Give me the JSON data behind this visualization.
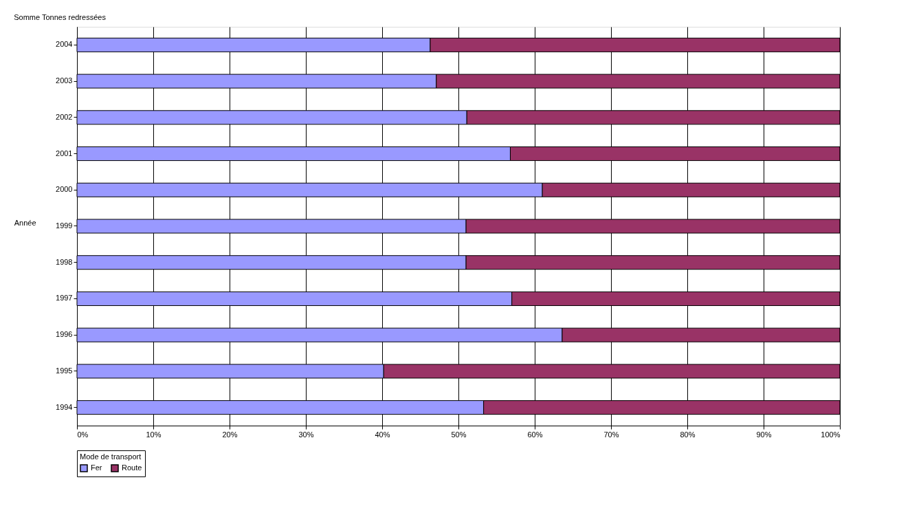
{
  "chart_data": {
    "type": "bar",
    "orientation": "horizontal",
    "stacked": true,
    "title": "Somme Tonnes redressées",
    "ylabel": "Année",
    "legend_title": "Mode de transport",
    "categories": [
      "2004",
      "2003",
      "2002",
      "2001",
      "2000",
      "1999",
      "1998",
      "1997",
      "1996",
      "1995",
      "1994"
    ],
    "series": [
      {
        "name": "Fer",
        "color": "#9999ff",
        "values": [
          46.3,
          47.1,
          51.1,
          56.8,
          61.0,
          51.0,
          51.0,
          57.0,
          63.6,
          40.2,
          53.3
        ]
      },
      {
        "name": "Route",
        "color": "#993366",
        "values": [
          53.7,
          52.9,
          48.9,
          43.2,
          39.0,
          49.0,
          49.0,
          43.0,
          36.4,
          59.8,
          46.7
        ]
      }
    ],
    "xlim": [
      0,
      100
    ],
    "xticks": [
      {
        "value": 0,
        "label": "0%"
      },
      {
        "value": 10,
        "label": "10%"
      },
      {
        "value": 20,
        "label": "20%"
      },
      {
        "value": 30,
        "label": "30%"
      },
      {
        "value": 40,
        "label": "40%"
      },
      {
        "value": 50,
        "label": "50%"
      },
      {
        "value": 60,
        "label": "60%"
      },
      {
        "value": 70,
        "label": "70%"
      },
      {
        "value": 80,
        "label": "80%"
      },
      {
        "value": 90,
        "label": "90%"
      },
      {
        "value": 100,
        "label": "100%"
      }
    ],
    "grid": "x",
    "legend": "bottom"
  }
}
